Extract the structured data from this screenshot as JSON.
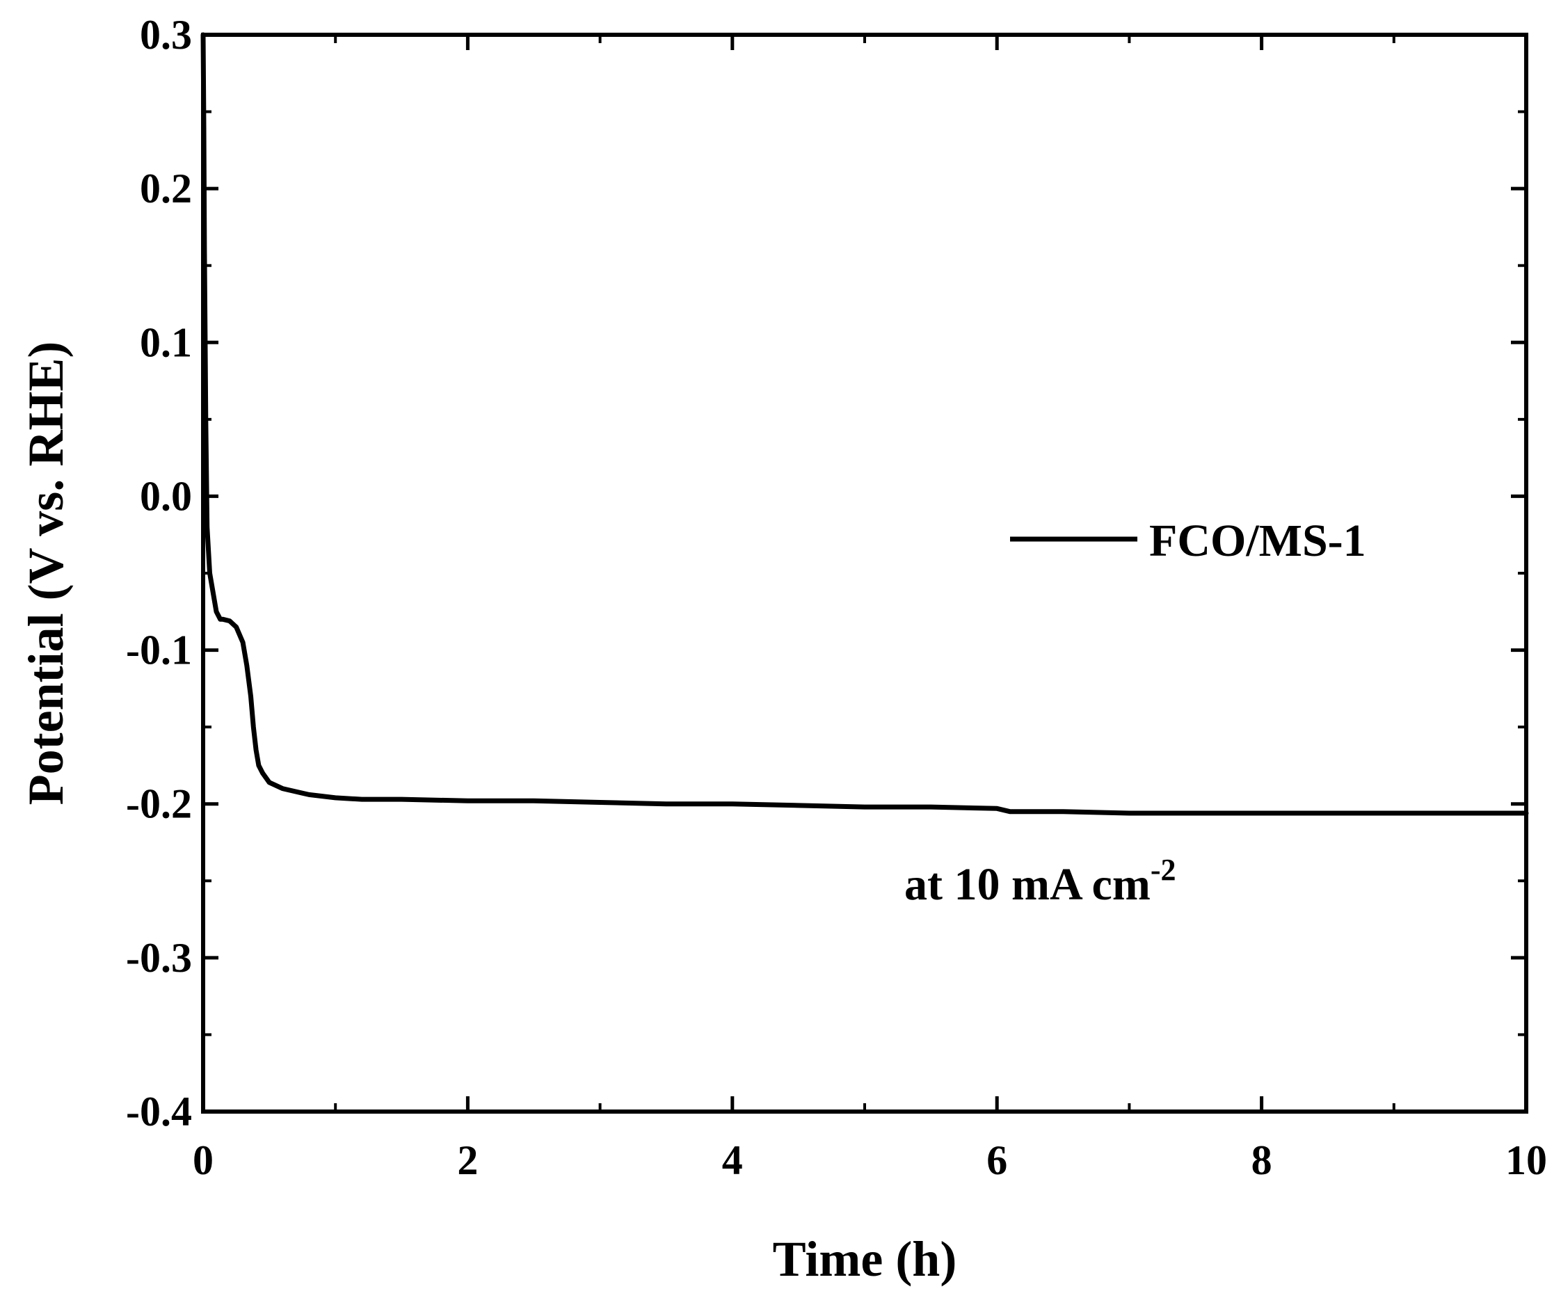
{
  "chart_data": {
    "type": "line",
    "xlabel": "Time (h)",
    "ylabel": "Potential (V vs. RHE)",
    "xlim": [
      0,
      10
    ],
    "ylim": [
      -0.4,
      0.3
    ],
    "xticks": [
      0,
      2,
      4,
      6,
      8,
      10
    ],
    "xtick_labels": [
      "0",
      "2",
      "4",
      "6",
      "8",
      "10"
    ],
    "yticks": [
      -0.4,
      -0.3,
      -0.2,
      -0.1,
      0.0,
      0.1,
      0.2,
      0.3
    ],
    "ytick_labels": [
      "-0.4",
      "-0.3",
      "-0.2",
      "-0.1",
      "0.0",
      "0.1",
      "0.2",
      "0.3"
    ],
    "grid": false,
    "legend_position": "right",
    "series": [
      {
        "name": "FCO/MS-1",
        "color": "#000000",
        "x": [
          0.0,
          0.005,
          0.01,
          0.02,
          0.03,
          0.05,
          0.07,
          0.1,
          0.13,
          0.15,
          0.2,
          0.25,
          0.3,
          0.33,
          0.36,
          0.38,
          0.4,
          0.42,
          0.45,
          0.5,
          0.6,
          0.7,
          0.8,
          1.0,
          1.2,
          1.5,
          2.0,
          2.5,
          3.0,
          3.5,
          4.0,
          4.5,
          5.0,
          5.5,
          6.0,
          6.1,
          6.5,
          7.0,
          7.5,
          8.0,
          8.5,
          9.0,
          9.5,
          10.0
        ],
        "y": [
          0.3,
          0.24,
          0.16,
          0.05,
          -0.02,
          -0.05,
          -0.06,
          -0.075,
          -0.08,
          -0.08,
          -0.081,
          -0.085,
          -0.095,
          -0.11,
          -0.13,
          -0.15,
          -0.165,
          -0.175,
          -0.18,
          -0.186,
          -0.19,
          -0.192,
          -0.194,
          -0.196,
          -0.197,
          -0.197,
          -0.198,
          -0.198,
          -0.199,
          -0.2,
          -0.2,
          -0.201,
          -0.202,
          -0.202,
          -0.203,
          -0.205,
          -0.205,
          -0.206,
          -0.206,
          -0.206,
          -0.206,
          -0.206,
          -0.206,
          -0.206
        ]
      }
    ],
    "annotations": [
      {
        "text": "at 10 mA cm",
        "superscript": "-2",
        "x": 5.3,
        "y": -0.262
      }
    ]
  }
}
